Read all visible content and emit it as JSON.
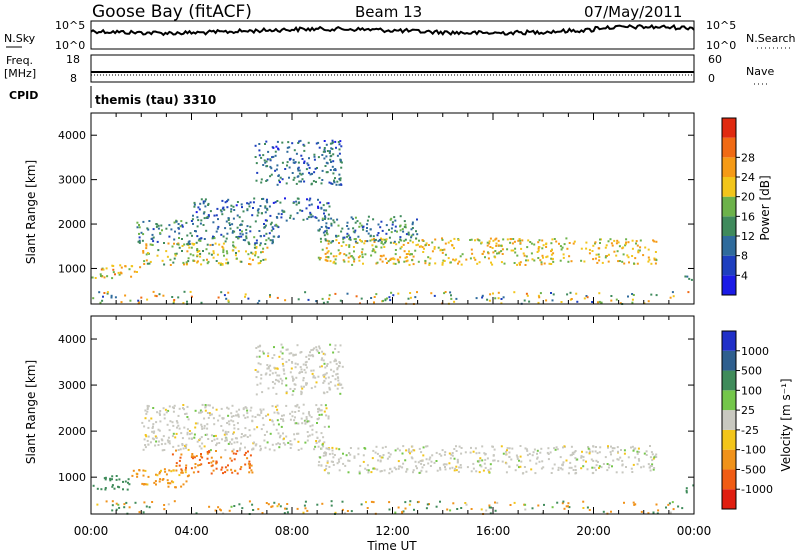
{
  "header": {
    "station": "Goose Bay (fitACF)",
    "beam": "Beam 13",
    "date": "07/May/2011"
  },
  "noise_panel": {
    "left_label": "N.Sky",
    "left_ticks": [
      "10^5",
      "10^0"
    ],
    "right_label": "N.Search",
    "right_ticks": [
      "10^5",
      "10^0"
    ]
  },
  "freq_panel": {
    "left_label_line1": "Freq.",
    "left_label_line2": "[MHz]",
    "left_ticks": [
      "18",
      "8"
    ],
    "right_label": "Nave",
    "right_ticks": [
      "60",
      "0"
    ]
  },
  "cpid": {
    "label": "CPID",
    "value": "themis (tau) 3310"
  },
  "time_axis": {
    "label": "Time UT",
    "ticks": [
      "00:00",
      "04:00",
      "08:00",
      "12:00",
      "16:00",
      "20:00",
      "00:00"
    ]
  },
  "range_axis": {
    "label": "Slant Range [km]",
    "ticks": [
      "1000",
      "2000",
      "3000",
      "4000"
    ]
  },
  "colors": {
    "power_bins": [
      "#1b1be6",
      "#1e3fbf",
      "#2f6b9c",
      "#3f8a5c",
      "#6cb24a",
      "#f2c51b",
      "#f59a16",
      "#f06a14",
      "#e02a10"
    ],
    "velocity_bins": [
      "#2030c8",
      "#2f5f8e",
      "#3f8b5a",
      "#74c64a",
      "#c8c8c0",
      "#f2c51b",
      "#f0921a",
      "#f05c14",
      "#e01e10"
    ]
  },
  "power_colorbar": {
    "label": "Power [dB]",
    "ticks": [
      "4",
      "8",
      "12",
      "16",
      "20",
      "24",
      "28"
    ]
  },
  "velocity_colorbar": {
    "label": "Velocity [m s⁻¹]",
    "ticks": [
      "-1000",
      "-500",
      "-100",
      "-25",
      "25",
      "100",
      "500",
      "1000"
    ]
  },
  "chart_data": {
    "type": "heatmap",
    "x_unit": "hours UT",
    "xlim": [
      0,
      24
    ],
    "ylim": [
      200,
      4500
    ],
    "y_unit": "km",
    "power_panel": {
      "quantity": "Power [dB]",
      "scatter_regions": [
        {
          "t_start": 0.0,
          "t_end": 2.0,
          "range_start": 800,
          "range_end": 1100,
          "power": 22
        },
        {
          "t_start": 2.0,
          "t_end": 7.0,
          "range_start": 1100,
          "range_end": 1600,
          "power": 18
        },
        {
          "t_start": 1.8,
          "t_end": 7.5,
          "range_start": 1550,
          "range_end": 2100,
          "power": 10
        },
        {
          "t_start": 4.0,
          "t_end": 9.5,
          "range_start": 2100,
          "range_end": 2600,
          "power": 8
        },
        {
          "t_start": 6.5,
          "t_end": 10.0,
          "range_start": 2900,
          "range_end": 3900,
          "power": 8
        },
        {
          "t_start": 9.0,
          "t_end": 22.5,
          "range_start": 1100,
          "range_end": 1700,
          "power": 20
        },
        {
          "t_start": 9.0,
          "t_end": 13.0,
          "range_start": 1600,
          "range_end": 2200,
          "power": 10
        },
        {
          "t_start": 23.6,
          "t_end": 24.0,
          "range_start": 700,
          "range_end": 900,
          "power": 8
        }
      ]
    },
    "velocity_panel": {
      "quantity": "Velocity [m s^-1]",
      "scatter_regions": [
        {
          "t_start": 0.0,
          "t_end": 1.6,
          "range_start": 750,
          "range_end": 1050,
          "velocity": 200
        },
        {
          "t_start": 1.6,
          "t_end": 4.0,
          "range_start": 800,
          "range_end": 1200,
          "velocity": -80
        },
        {
          "t_start": 3.2,
          "t_end": 6.4,
          "range_start": 1100,
          "range_end": 1600,
          "velocity": -300
        },
        {
          "t_start": 2.0,
          "t_end": 9.5,
          "range_start": 1600,
          "range_end": 2600,
          "velocity": 0
        },
        {
          "t_start": 6.5,
          "t_end": 10.0,
          "range_start": 2800,
          "range_end": 3900,
          "velocity": 0
        },
        {
          "t_start": 9.0,
          "t_end": 22.5,
          "range_start": 1100,
          "range_end": 1700,
          "velocity": 0
        },
        {
          "t_start": 23.6,
          "t_end": 24.0,
          "range_start": 650,
          "range_end": 850,
          "velocity": 200
        }
      ]
    }
  }
}
